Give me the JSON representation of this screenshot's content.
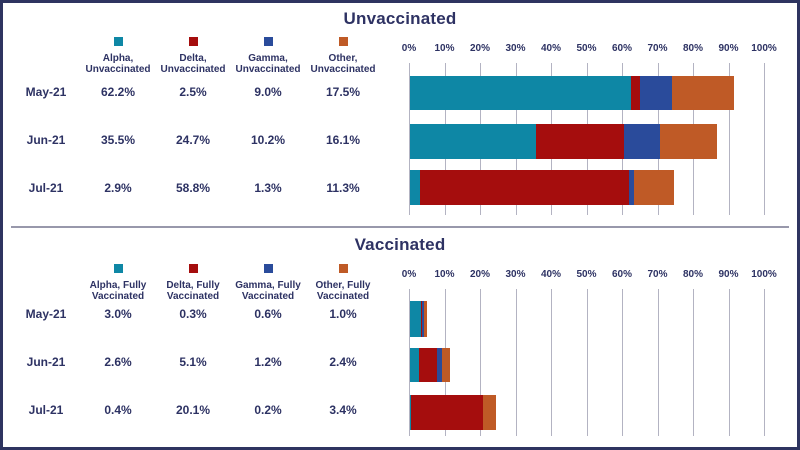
{
  "frame": {
    "background": "#ffffff",
    "border_color": "#2e3460"
  },
  "colors": {
    "alpha": "#0e87a5",
    "delta": "#a50d0d",
    "gamma": "#2a4b9b",
    "other": "#bf5a26",
    "text": "#2d3263",
    "gridline": "#b3b3c2",
    "divider": "#9898ab"
  },
  "chart_data": [
    {
      "type": "bar",
      "stacked": true,
      "orientation": "horizontal",
      "title": "Unvaccinated",
      "categories": [
        "May-21",
        "Jun-21",
        "Jul-21"
      ],
      "series": [
        {
          "name": "Alpha, Unvaccinated",
          "color": "#0e87a5",
          "values": [
            62.2,
            35.5,
            2.9
          ]
        },
        {
          "name": "Delta, Unvaccinated",
          "color": "#a50d0d",
          "values": [
            2.5,
            24.7,
            58.8
          ]
        },
        {
          "name": "Gamma, Unvaccinated",
          "color": "#2a4b9b",
          "values": [
            9.0,
            10.2,
            1.3
          ]
        },
        {
          "name": "Other, Unvaccinated",
          "color": "#bf5a26",
          "values": [
            17.5,
            16.1,
            11.3
          ]
        }
      ],
      "xlabel": "",
      "ylabel": "",
      "xlim": [
        0,
        100
      ],
      "x_tick_labels": [
        "0%",
        "10%",
        "20%",
        "30%",
        "40%",
        "50%",
        "60%",
        "70%",
        "80%",
        "90%",
        "100%"
      ],
      "grid": true,
      "legend_position": "top-of-data-table"
    },
    {
      "type": "bar",
      "stacked": true,
      "orientation": "horizontal",
      "title": "Vaccinated",
      "categories": [
        "May-21",
        "Jun-21",
        "Jul-21"
      ],
      "series": [
        {
          "name": "Alpha, Fully Vaccinated",
          "color": "#0e87a5",
          "values": [
            3.0,
            2.6,
            0.4
          ]
        },
        {
          "name": "Delta, Fully Vaccinated",
          "color": "#a50d0d",
          "values": [
            0.3,
            5.1,
            20.1
          ]
        },
        {
          "name": "Gamma, Fully Vaccinated",
          "color": "#2a4b9b",
          "values": [
            0.6,
            1.2,
            0.2
          ]
        },
        {
          "name": "Other, Fully Vaccinated",
          "color": "#bf5a26",
          "values": [
            1.0,
            2.4,
            3.4
          ]
        }
      ],
      "xlabel": "",
      "ylabel": "",
      "xlim": [
        0,
        100
      ],
      "x_tick_labels": [
        "0%",
        "10%",
        "20%",
        "30%",
        "40%",
        "50%",
        "60%",
        "70%",
        "80%",
        "90%",
        "100%"
      ],
      "grid": true,
      "legend_position": "top-of-data-table"
    }
  ],
  "sections": [
    {
      "title": "Unvaccinated",
      "legend": [
        {
          "label": "Alpha,\nUnvaccinated",
          "color": "#0e87a5"
        },
        {
          "label": "Delta,\nUnvaccinated",
          "color": "#a50d0d"
        },
        {
          "label": "Gamma,\nUnvaccinated",
          "color": "#2a4b9b"
        },
        {
          "label": "Other,\nUnvaccinated",
          "color": "#bf5a26"
        }
      ],
      "rows": [
        {
          "label": "May-21",
          "values": [
            "62.2%",
            "2.5%",
            "9.0%",
            "17.5%"
          ]
        },
        {
          "label": "Jun-21",
          "values": [
            "35.5%",
            "24.7%",
            "10.2%",
            "16.1%"
          ]
        },
        {
          "label": "Jul-21",
          "values": [
            "2.9%",
            "58.8%",
            "1.3%",
            "11.3%"
          ]
        }
      ]
    },
    {
      "title": "Vaccinated",
      "legend": [
        {
          "label": "Alpha, Fully\nVaccinated",
          "color": "#0e87a5"
        },
        {
          "label": "Delta, Fully\nVaccinated",
          "color": "#a50d0d"
        },
        {
          "label": "Gamma, Fully\nVaccinated",
          "color": "#2a4b9b"
        },
        {
          "label": "Other, Fully\nVaccinated",
          "color": "#bf5a26"
        }
      ],
      "rows": [
        {
          "label": "May-21",
          "values": [
            "3.0%",
            "0.3%",
            "0.6%",
            "1.0%"
          ]
        },
        {
          "label": "Jun-21",
          "values": [
            "2.6%",
            "5.1%",
            "1.2%",
            "2.4%"
          ]
        },
        {
          "label": "Jul-21",
          "values": [
            "0.4%",
            "20.1%",
            "0.2%",
            "3.4%"
          ]
        }
      ]
    }
  ]
}
